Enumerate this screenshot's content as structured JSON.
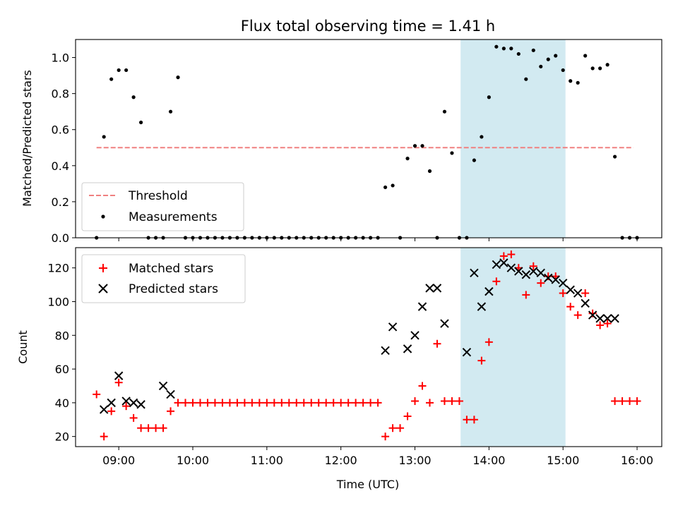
{
  "chart_data": [
    {
      "type": "scatter",
      "title": "Flux total observing time = 1.41 h",
      "xlabel": "",
      "ylabel": "Matched/Predicted stars",
      "x_unit": "time (UTC)",
      "xlim": [
        "08:25",
        "16:20"
      ],
      "ylim": [
        0,
        1.1
      ],
      "yticks": [
        0.0,
        0.2,
        0.4,
        0.6,
        0.8,
        1.0
      ],
      "ytick_labels": [
        "0.0",
        "0.2",
        "0.4",
        "0.6",
        "0.8",
        "1.0"
      ],
      "grid": false,
      "legend_position": "lower-left",
      "highlight_span": [
        "13:37",
        "15:02"
      ],
      "threshold": {
        "name": "Threshold",
        "value": 0.5,
        "x_start": "08:42",
        "x_end": "15:57",
        "color": "#f08080",
        "style": "dashed"
      },
      "series": [
        {
          "name": "Measurements",
          "color": "#000000",
          "marker": "dot",
          "x": [
            "08:42",
            "08:48",
            "08:54",
            "09:00",
            "09:06",
            "09:12",
            "09:18",
            "09:24",
            "09:30",
            "09:36",
            "09:42",
            "09:48",
            "09:54",
            "10:00",
            "10:06",
            "10:12",
            "10:18",
            "10:24",
            "10:30",
            "10:36",
            "10:42",
            "10:48",
            "10:54",
            "11:00",
            "11:06",
            "11:12",
            "11:18",
            "11:24",
            "11:30",
            "11:36",
            "11:42",
            "11:48",
            "11:54",
            "12:00",
            "12:06",
            "12:12",
            "12:18",
            "12:24",
            "12:30",
            "12:36",
            "12:42",
            "12:48",
            "12:54",
            "13:00",
            "13:06",
            "13:12",
            "13:18",
            "13:24",
            "13:30",
            "13:36",
            "13:42",
            "13:48",
            "13:54",
            "14:00",
            "14:06",
            "14:12",
            "14:18",
            "14:24",
            "14:30",
            "14:36",
            "14:42",
            "14:48",
            "14:54",
            "15:00",
            "15:06",
            "15:12",
            "15:18",
            "15:24",
            "15:30",
            "15:36",
            "15:42",
            "15:48",
            "15:54",
            "16:00"
          ],
          "y": [
            0.0,
            0.56,
            0.88,
            0.93,
            0.93,
            0.78,
            0.64,
            0.0,
            0.0,
            0.0,
            0.7,
            0.89,
            0.0,
            0.0,
            0.0,
            0.0,
            0.0,
            0.0,
            0.0,
            0.0,
            0.0,
            0.0,
            0.0,
            0.0,
            0.0,
            0.0,
            0.0,
            0.0,
            0.0,
            0.0,
            0.0,
            0.0,
            0.0,
            0.0,
            0.0,
            0.0,
            0.0,
            0.0,
            0.0,
            0.28,
            0.29,
            0.0,
            0.44,
            0.51,
            0.51,
            0.37,
            0.0,
            0.7,
            0.47,
            0.0,
            0.0,
            0.43,
            0.56,
            0.78,
            1.06,
            1.05,
            1.05,
            1.02,
            0.88,
            1.04,
            0.95,
            0.99,
            1.01,
            0.93,
            0.87,
            0.86,
            1.01,
            0.94,
            0.94,
            0.96,
            0.45,
            0.0,
            0.0,
            0.0
          ]
        }
      ]
    },
    {
      "type": "scatter",
      "title": "",
      "xlabel": "Time (UTC)",
      "ylabel": "Count",
      "xlim": [
        "08:25",
        "16:20"
      ],
      "ylim": [
        14,
        132
      ],
      "xticks": [
        "09:00",
        "10:00",
        "11:00",
        "12:00",
        "13:00",
        "14:00",
        "15:00",
        "16:00"
      ],
      "yticks": [
        20,
        40,
        60,
        80,
        100,
        120
      ],
      "grid": false,
      "legend_position": "upper-left",
      "highlight_span": [
        "13:37",
        "15:02"
      ],
      "series": [
        {
          "name": "Matched stars",
          "color": "#ff0000",
          "marker": "plus",
          "x": [
            "08:42",
            "08:48",
            "08:54",
            "09:00",
            "09:06",
            "09:12",
            "09:18",
            "09:24",
            "09:30",
            "09:36",
            "09:42",
            "09:48",
            "09:54",
            "10:00",
            "10:06",
            "10:12",
            "10:18",
            "10:24",
            "10:30",
            "10:36",
            "10:42",
            "10:48",
            "10:54",
            "11:00",
            "11:06",
            "11:12",
            "11:18",
            "11:24",
            "11:30",
            "11:36",
            "11:42",
            "11:48",
            "11:54",
            "12:00",
            "12:06",
            "12:12",
            "12:18",
            "12:24",
            "12:30",
            "12:36",
            "12:42",
            "12:48",
            "12:54",
            "13:00",
            "13:06",
            "13:12",
            "13:18",
            "13:24",
            "13:30",
            "13:36",
            "13:42",
            "13:48",
            "13:54",
            "14:00",
            "14:06",
            "14:12",
            "14:18",
            "14:24",
            "14:30",
            "14:36",
            "14:42",
            "14:48",
            "14:54",
            "15:00",
            "15:06",
            "15:12",
            "15:18",
            "15:24",
            "15:30",
            "15:36",
            "15:42",
            "15:48",
            "15:54",
            "16:00"
          ],
          "y": [
            45,
            20,
            35,
            52,
            38,
            31,
            25,
            25,
            25,
            25,
            35,
            40,
            40,
            40,
            40,
            40,
            40,
            40,
            40,
            40,
            40,
            40,
            40,
            40,
            40,
            40,
            40,
            40,
            40,
            40,
            40,
            40,
            40,
            40,
            40,
            40,
            40,
            40,
            40,
            20,
            25,
            25,
            32,
            41,
            50,
            40,
            75,
            41,
            41,
            41,
            30,
            30,
            65,
            76,
            112,
            127,
            128,
            120,
            104,
            121,
            111,
            115,
            115,
            105,
            97,
            92,
            105,
            93,
            86,
            87,
            41,
            41,
            41,
            41
          ]
        },
        {
          "name": "Predicted stars",
          "color": "#000000",
          "marker": "x",
          "x": [
            "08:48",
            "08:54",
            "09:00",
            "09:06",
            "09:12",
            "09:18",
            "09:36",
            "09:42",
            "12:36",
            "12:42",
            "12:54",
            "13:00",
            "13:06",
            "13:12",
            "13:18",
            "13:24",
            "13:42",
            "13:48",
            "13:54",
            "14:00",
            "14:06",
            "14:12",
            "14:18",
            "14:24",
            "14:30",
            "14:36",
            "14:42",
            "14:48",
            "14:54",
            "15:00",
            "15:06",
            "15:12",
            "15:18",
            "15:24",
            "15:30",
            "15:36",
            "15:42"
          ],
          "y": [
            36,
            40,
            56,
            41,
            40,
            39,
            50,
            45,
            71,
            85,
            72,
            80,
            97,
            108,
            108,
            87,
            70,
            117,
            97,
            106,
            122,
            123,
            120,
            118,
            116,
            118,
            117,
            114,
            113,
            111,
            107,
            105,
            99,
            92,
            90,
            90,
            90
          ]
        }
      ]
    }
  ]
}
